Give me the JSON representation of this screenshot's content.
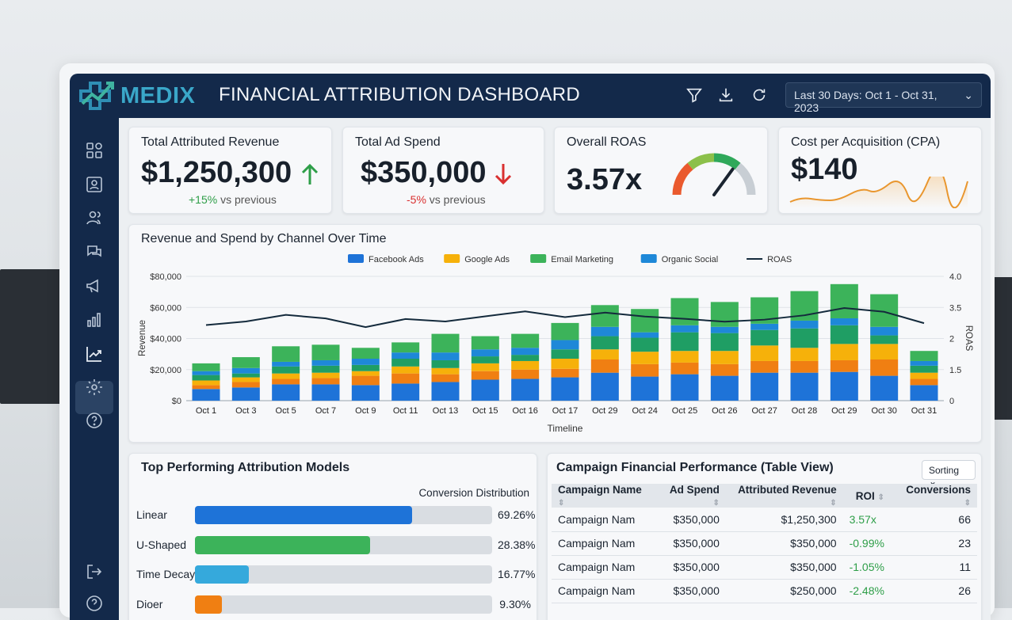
{
  "app": {
    "logo": "MEDIX",
    "title": "FINANCIAL ATTRIBUTION DASHBOARD",
    "date_range": "Last 30 Days: Oct 1 - Oct 31, 2023"
  },
  "colors": {
    "navy": "#13294a",
    "positive": "#2e9e48",
    "negative": "#d93030",
    "facebook": "#1e73d8",
    "google": "#f6b10a",
    "email": "#3cb35a",
    "organic": "#1e88d8",
    "extra_orange": "#f07f12",
    "extra_teal": "#1f9e64",
    "roas_line": "#142a3c"
  },
  "sidebar": {
    "items": [
      "dashboard-icon",
      "profile-icon",
      "users-icon",
      "chat-icon",
      "megaphone-icon",
      "bar-chart-icon",
      "trend-icon",
      "gear-icon",
      "help-icon"
    ],
    "active": "trend-icon",
    "bottom": [
      "logout-icon",
      "help-icon"
    ]
  },
  "kpis": {
    "revenue": {
      "label": "Total Attributed Revenue",
      "value": "$1,250,300",
      "change": "+15%",
      "suffix": "vs previous",
      "direction": "up"
    },
    "spend": {
      "label": "Total Ad Spend",
      "value": "$350,000",
      "change": "-5%",
      "suffix": "vs previous",
      "direction": "down"
    },
    "roas": {
      "label": "Overall ROAS",
      "value": "3.57x",
      "gauge_level": 0.7
    },
    "cpa": {
      "label": "Cost per Acquisition (CPA)",
      "value": "$140"
    }
  },
  "chart_title": "Revenue and Spend by Channel Over Time",
  "chart_data": {
    "type": "bar",
    "stacked": true,
    "title": "Revenue and Spend by Channel Over Time",
    "xlabel": "Timeline",
    "ylabel": "Revenue",
    "y2label": "ROAS",
    "ylim": [
      0,
      80000
    ],
    "yticks": [
      "$0",
      "$20,000",
      "$40,000",
      "$60,000",
      "$80,000"
    ],
    "y2ticks": [
      "0",
      "1.5",
      "2",
      "3.5",
      "4.0"
    ],
    "grid": true,
    "legend": "top",
    "categories": [
      "Oct 1",
      "Oct 3",
      "Oct 5",
      "Oct 7",
      "Oct 9",
      "Oct 11",
      "Oct 13",
      "Oct 15",
      "Oct 16",
      "Oct 17",
      "Oct 29",
      "Oct 24",
      "Oct 25",
      "Oct 26",
      "Oct 27",
      "Oct 28",
      "Oct 29",
      "Oct 30",
      "Oct 31"
    ],
    "series": [
      {
        "name": "Facebook Ads",
        "color": "#1e73d8",
        "values": [
          7500,
          8500,
          10500,
          10500,
          10000,
          11000,
          12000,
          13500,
          14000,
          15000,
          18000,
          15500,
          17000,
          16000,
          18000,
          18000,
          18500,
          16000,
          10000
        ]
      },
      {
        "name": "",
        "color": "#f07f12",
        "values": [
          2500,
          3500,
          3500,
          4000,
          6000,
          6500,
          5000,
          5500,
          6000,
          5500,
          8500,
          8000,
          7500,
          7500,
          7500,
          7500,
          7500,
          10500,
          4000
        ]
      },
      {
        "name": "Google Ads",
        "color": "#f6b10a",
        "values": [
          3000,
          3000,
          3500,
          3500,
          3000,
          4500,
          4000,
          5000,
          5500,
          6500,
          6500,
          8000,
          7500,
          8500,
          10000,
          8500,
          10500,
          10000,
          4000
        ]
      },
      {
        "name": "",
        "color": "#1f9e64",
        "values": [
          3500,
          2500,
          4500,
          4500,
          4000,
          5000,
          5000,
          4500,
          4000,
          6000,
          8500,
          9000,
          12000,
          11500,
          10000,
          12500,
          12000,
          5500,
          4500
        ]
      },
      {
        "name": "Organic Social",
        "color": "#1e88d8",
        "values": [
          2500,
          3500,
          3000,
          3500,
          4000,
          4000,
          5000,
          4500,
          4500,
          6000,
          6000,
          3500,
          4500,
          4000,
          4000,
          5000,
          4500,
          5500,
          3000
        ]
      },
      {
        "name": "Email Marketing",
        "color": "#3cb35a",
        "values": [
          5000,
          7000,
          10000,
          10000,
          7000,
          6500,
          12000,
          8500,
          9000,
          11000,
          14000,
          15000,
          17500,
          16000,
          17000,
          19000,
          22000,
          21000,
          6500
        ]
      }
    ],
    "legend_order": [
      "Facebook Ads",
      "Google Ads",
      "Email Marketing",
      "Organic Social",
      "ROAS"
    ],
    "line": {
      "name": "ROAS",
      "color": "#142a3c",
      "values": [
        2.65,
        2.82,
        3.14,
        2.97,
        2.55,
        2.94,
        2.82,
        3.07,
        3.31,
        3.03,
        3.25,
        3.06,
        2.95,
        2.81,
        2.91,
        3.12,
        3.47,
        3.29,
        2.74
      ]
    }
  },
  "models": {
    "title": "Top Performing Attribution Models",
    "subtitle": "Conversion Distribution",
    "rows": [
      {
        "label": "Linear",
        "value": "69.26%",
        "fill": 0.73,
        "color": "#1e73d8"
      },
      {
        "label": "U-Shaped",
        "value": "28.38%",
        "fill": 0.59,
        "color": "#3cb35a"
      },
      {
        "label": "Time Decay",
        "value": "16.77%",
        "fill": 0.18,
        "color": "#35a9dc"
      },
      {
        "label": "Dioer",
        "value": "9.30%",
        "fill": 0.09,
        "color": "#f07f12"
      }
    ]
  },
  "campaigns": {
    "title": "Campaign Financial Performance (Table View)",
    "sort_label": "Sorting",
    "headers": [
      "Campaign Name",
      "Ad Spend",
      "Attributed Revenue",
      "ROI",
      "Conversions"
    ],
    "rows": [
      [
        "Campaign Nam",
        "$350,000",
        "$1,250,300",
        "3.57x",
        "66"
      ],
      [
        "Campaign Nam",
        "$350,000",
        "$350,000",
        "-0.99%",
        "23"
      ],
      [
        "Campaign Nam",
        "$350,000",
        "$350,000",
        "-1.05%",
        "11"
      ],
      [
        "Campaign Nam",
        "$350,000",
        "$250,000",
        "-2.48%",
        "26"
      ]
    ]
  }
}
